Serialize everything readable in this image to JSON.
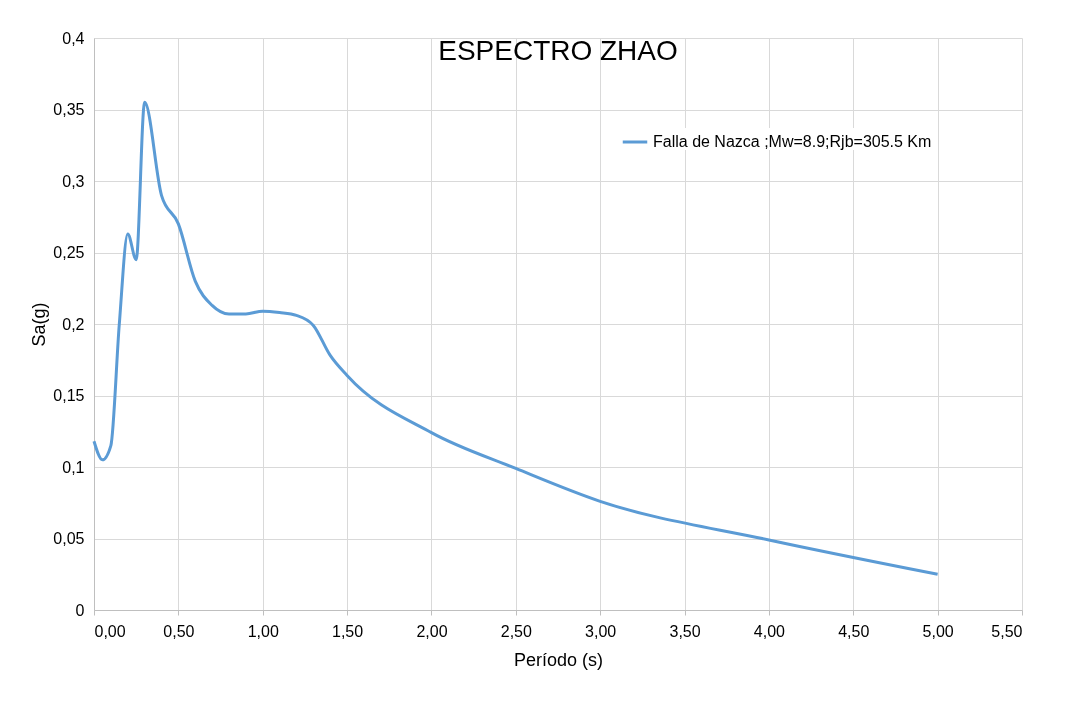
{
  "chart_data": {
    "type": "line",
    "title": "ESPECTRO ZHAO",
    "xlabel": "Período (s)",
    "ylabel": "Sa(g)",
    "x": [
      0,
      0.05,
      0.1,
      0.15,
      0.2,
      0.25,
      0.3,
      0.4,
      0.5,
      0.6,
      0.7,
      0.8,
      0.9,
      1.0,
      1.1,
      1.2,
      1.3,
      1.4,
      1.5,
      2.0,
      2.5,
      3.0,
      4.0,
      5.0
    ],
    "series": [
      {
        "name": "Falla de Nazca ;Mw=8.9;Rjb=305.5 Km",
        "color": "#5b9bd5",
        "values": [
          0.118,
          0.105,
          0.115,
          0.2,
          0.263,
          0.245,
          0.355,
          0.29,
          0.27,
          0.23,
          0.213,
          0.207,
          0.207,
          0.209,
          0.208,
          0.206,
          0.199,
          0.178,
          0.164,
          0.124,
          0.099,
          0.076,
          0.049,
          0.025
        ]
      }
    ],
    "xlim": [
      0,
      5.5
    ],
    "xticks": [
      {
        "value": 0,
        "label": "0,00"
      },
      {
        "value": 0.5,
        "label": "0,50"
      },
      {
        "value": 1,
        "label": "1,00"
      },
      {
        "value": 1.5,
        "label": "1,50"
      },
      {
        "value": 2,
        "label": "2,00"
      },
      {
        "value": 2.5,
        "label": "2,50"
      },
      {
        "value": 3,
        "label": "3,00"
      },
      {
        "value": 3.5,
        "label": "3,50"
      },
      {
        "value": 4,
        "label": "4,00"
      },
      {
        "value": 4.5,
        "label": "4,50"
      },
      {
        "value": 5,
        "label": "5,00"
      },
      {
        "value": 5.5,
        "label": "5,50"
      }
    ],
    "ylim": [
      0,
      0.4
    ],
    "yticks": [
      0,
      {
        "value": 0.05,
        "label": "0,05"
      },
      {
        "value": 0.1,
        "label": "0,1"
      },
      {
        "value": 0.15,
        "label": "0,15"
      },
      {
        "value": 0.2,
        "label": "0,2"
      },
      {
        "value": 0.25,
        "label": "0,25"
      },
      {
        "value": 0.3,
        "label": "0,3"
      },
      {
        "value": 0.35,
        "label": "0,35"
      },
      {
        "value": 0.4,
        "label": "0,4"
      }
    ],
    "grid": true,
    "legend": "top right",
    "marker": "none",
    "line_style": "solid"
  }
}
